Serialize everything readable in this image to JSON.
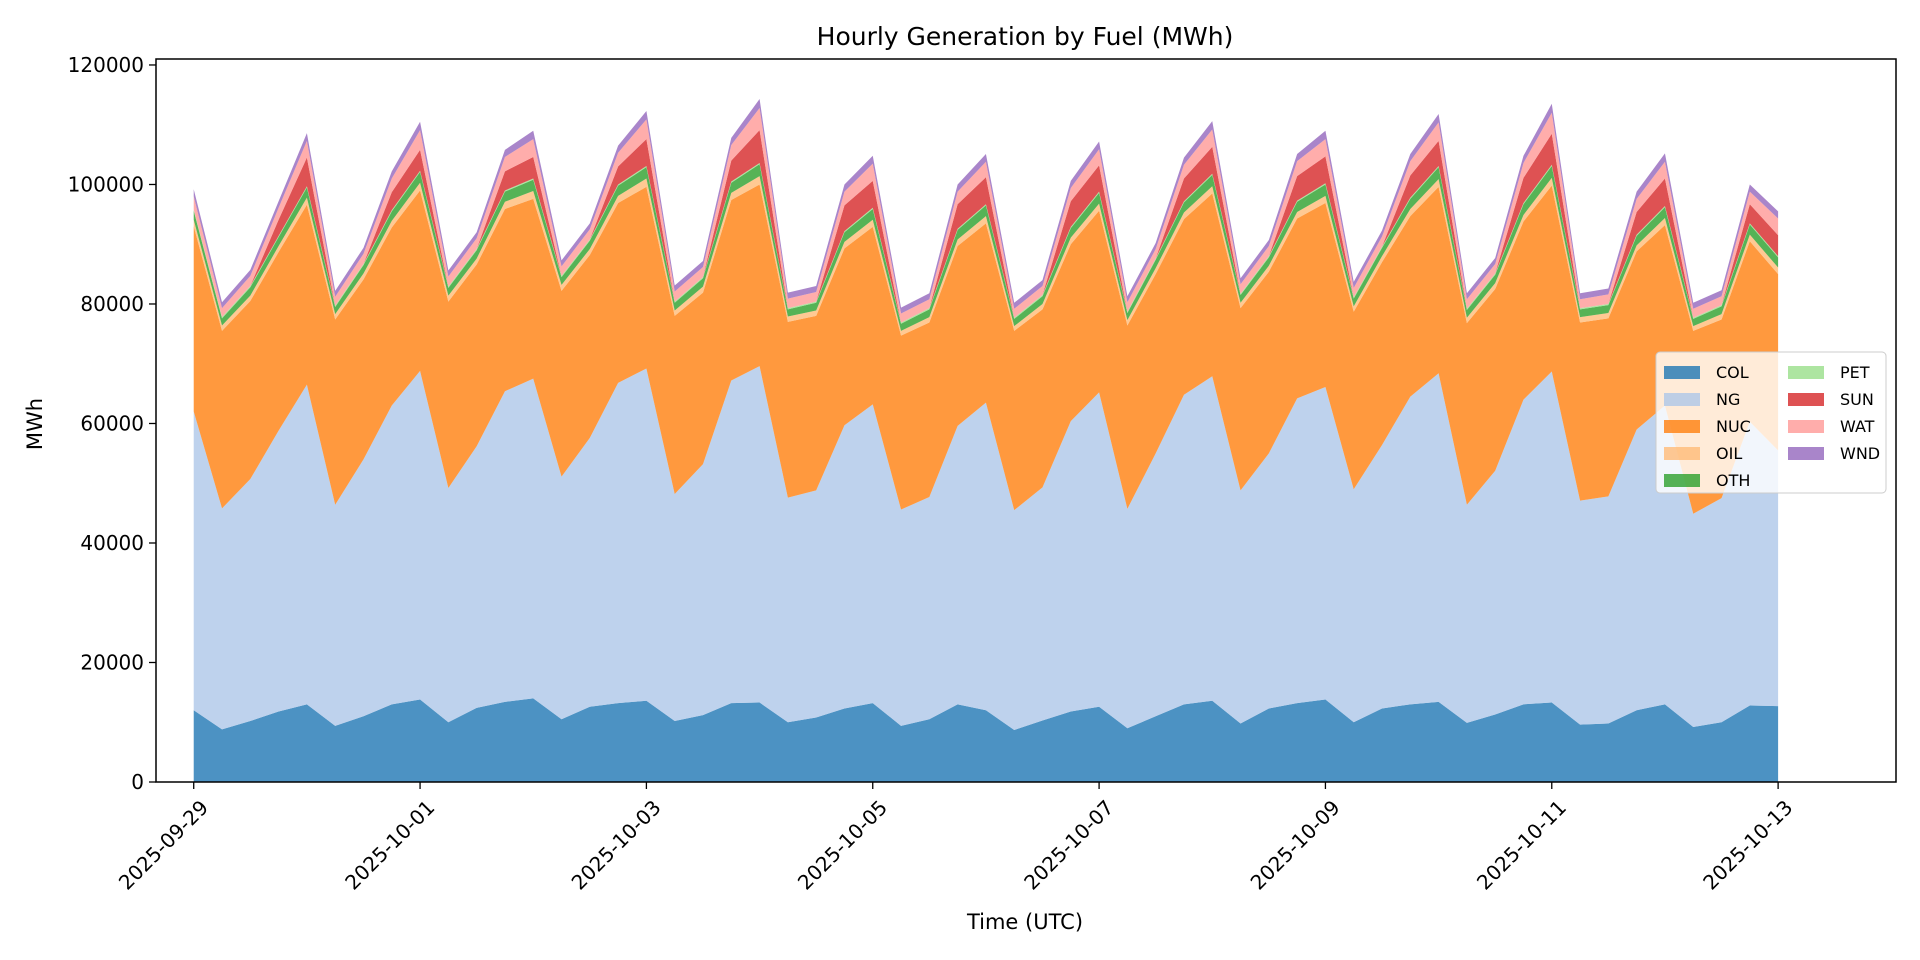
{
  "chart_data": {
    "type": "area",
    "stacked": true,
    "title": "Hourly Generation by Fuel (MWh)",
    "xlabel": "Time (UTC)",
    "ylabel": "MWh",
    "ylim": [
      0,
      121000
    ],
    "xlim": [
      "2025-09-28T16:00",
      "2025-10-14T01:00"
    ],
    "yticks": [
      0,
      20000,
      40000,
      60000,
      80000,
      100000,
      120000
    ],
    "xticks": [
      "2025-09-29",
      "2025-10-01",
      "2025-10-03",
      "2025-10-05",
      "2025-10-07",
      "2025-10-09",
      "2025-10-11",
      "2025-10-13"
    ],
    "grid": false,
    "legend_position": "center-right",
    "legend_columns": 2,
    "x": [
      "2025-09-29T00:00",
      "2025-09-29T06:00",
      "2025-09-29T12:00",
      "2025-09-29T18:00",
      "2025-09-30T00:00",
      "2025-09-30T06:00",
      "2025-09-30T12:00",
      "2025-09-30T18:00",
      "2025-10-01T00:00",
      "2025-10-01T06:00",
      "2025-10-01T12:00",
      "2025-10-01T18:00",
      "2025-10-02T00:00",
      "2025-10-02T06:00",
      "2025-10-02T12:00",
      "2025-10-02T18:00",
      "2025-10-03T00:00",
      "2025-10-03T06:00",
      "2025-10-03T12:00",
      "2025-10-03T18:00",
      "2025-10-04T00:00",
      "2025-10-04T06:00",
      "2025-10-04T12:00",
      "2025-10-04T18:00",
      "2025-10-05T00:00",
      "2025-10-05T06:00",
      "2025-10-05T12:00",
      "2025-10-05T18:00",
      "2025-10-06T00:00",
      "2025-10-06T06:00",
      "2025-10-06T12:00",
      "2025-10-06T18:00",
      "2025-10-07T00:00",
      "2025-10-07T06:00",
      "2025-10-07T12:00",
      "2025-10-07T18:00",
      "2025-10-08T00:00",
      "2025-10-08T06:00",
      "2025-10-08T12:00",
      "2025-10-08T18:00",
      "2025-10-09T00:00",
      "2025-10-09T06:00",
      "2025-10-09T12:00",
      "2025-10-09T18:00",
      "2025-10-10T00:00",
      "2025-10-10T06:00",
      "2025-10-10T12:00",
      "2025-10-10T18:00",
      "2025-10-11T00:00",
      "2025-10-11T06:00",
      "2025-10-11T12:00",
      "2025-10-11T18:00",
      "2025-10-12T00:00",
      "2025-10-12T06:00",
      "2025-10-12T12:00",
      "2025-10-12T18:00",
      "2025-10-13T00:00"
    ],
    "series": [
      {
        "name": "COL",
        "color": "#1f77b4",
        "values": [
          12000,
          8800,
          10200,
          11800,
          13000,
          9400,
          11000,
          13000,
          13800,
          10000,
          12400,
          13400,
          14000,
          10500,
          12600,
          13200,
          13600,
          10200,
          11200,
          13200,
          13300,
          10000,
          10800,
          12300,
          13200,
          9400,
          10500,
          13000,
          12000,
          8700,
          10300,
          11800,
          12600,
          9000,
          11000,
          13000,
          13600,
          9800,
          12300,
          13200,
          13800,
          10000,
          12300,
          13000,
          13400,
          9900,
          11300,
          13000,
          13300,
          9600,
          9800,
          12000,
          13000,
          9200,
          10000,
          12800,
          12700
        ]
      },
      {
        "name": "NG",
        "color": "#aec7e8",
        "values": [
          50000,
          37000,
          40500,
          47000,
          53500,
          37000,
          43000,
          50000,
          55000,
          39200,
          43800,
          52000,
          53500,
          40600,
          45000,
          53600,
          55600,
          38000,
          42000,
          54000,
          56300,
          37600,
          38000,
          47400,
          50000,
          36200,
          37200,
          46600,
          51500,
          36800,
          39000,
          48600,
          52600,
          36700,
          44000,
          51800,
          54300,
          39000,
          42700,
          51000,
          52300,
          39000,
          44100,
          51500,
          55000,
          36500,
          40800,
          51000,
          55400,
          37500,
          38000,
          47000,
          50000,
          35700,
          37500,
          47500,
          42800
        ]
      },
      {
        "name": "NUC",
        "color": "#ff7f0e",
        "values": [
          31000,
          29700,
          29800,
          29900,
          30100,
          31000,
          30100,
          29800,
          30200,
          31200,
          30400,
          30500,
          30100,
          31100,
          30600,
          30100,
          30400,
          29800,
          28700,
          30200,
          30400,
          29400,
          29200,
          29600,
          29700,
          29100,
          29200,
          30100,
          30000,
          30000,
          29800,
          29600,
          30400,
          30700,
          30000,
          29400,
          30600,
          30500,
          30400,
          30100,
          30800,
          29700,
          30600,
          30200,
          31200,
          30400,
          30400,
          29800,
          31100,
          29800,
          29800,
          29800,
          30200,
          30600,
          29900,
          30200,
          29500
        ]
      },
      {
        "name": "OIL",
        "color": "#ffbb78",
        "values": [
          1100,
          900,
          900,
          1000,
          1200,
          900,
          1000,
          1100,
          1300,
          1000,
          1000,
          1200,
          1300,
          1000,
          1000,
          1200,
          1400,
          900,
          1000,
          1200,
          1400,
          900,
          900,
          1100,
          1200,
          800,
          900,
          1100,
          1200,
          800,
          900,
          1100,
          1200,
          900,
          1000,
          1100,
          1200,
          900,
          1000,
          1100,
          1200,
          900,
          1000,
          1200,
          1300,
          900,
          1000,
          1100,
          1300,
          900,
          900,
          1000,
          1200,
          800,
          900,
          1100,
          1100
        ]
      },
      {
        "name": "OTH",
        "color": "#2ca02c",
        "values": [
          1500,
          1200,
          1400,
          1500,
          1700,
          1200,
          1400,
          1600,
          1800,
          1300,
          1400,
          1700,
          1900,
          1300,
          1400,
          1700,
          1900,
          1300,
          1400,
          1700,
          2000,
          1200,
          1300,
          1600,
          1800,
          1200,
          1300,
          1600,
          1800,
          1200,
          1300,
          1600,
          1800,
          1200,
          1400,
          1700,
          1900,
          1300,
          1400,
          1700,
          1900,
          1300,
          1400,
          1700,
          2000,
          1300,
          1400,
          1800,
          2000,
          1300,
          1300,
          1600,
          1800,
          1200,
          1300,
          1700,
          1700
        ]
      },
      {
        "name": "PET",
        "color": "#98df8a",
        "values": [
          200,
          200,
          200,
          200,
          200,
          200,
          200,
          200,
          200,
          200,
          200,
          200,
          200,
          200,
          200,
          200,
          200,
          200,
          200,
          200,
          200,
          200,
          200,
          200,
          200,
          200,
          200,
          200,
          200,
          200,
          200,
          200,
          200,
          200,
          200,
          200,
          200,
          200,
          200,
          200,
          200,
          200,
          200,
          200,
          200,
          200,
          200,
          200,
          200,
          200,
          200,
          200,
          200,
          200,
          200,
          200,
          200
        ]
      },
      {
        "name": "SUN",
        "color": "#d62728",
        "values": [
          0,
          0,
          0,
          2700,
          4800,
          0,
          0,
          3000,
          3500,
          0,
          0,
          3200,
          3600,
          0,
          0,
          3000,
          4500,
          0,
          0,
          3500,
          5500,
          0,
          0,
          4300,
          4500,
          0,
          0,
          4100,
          4500,
          0,
          0,
          4300,
          4400,
          0,
          0,
          3800,
          4500,
          0,
          0,
          4100,
          4500,
          0,
          0,
          3700,
          4200,
          0,
          0,
          4200,
          5200,
          0,
          0,
          3800,
          4600,
          0,
          0,
          3200,
          3500
        ]
      },
      {
        "name": "WAT",
        "color": "#ff9896",
        "values": [
          2200,
          1500,
          1700,
          2000,
          2800,
          1500,
          1700,
          2300,
          3300,
          1700,
          1800,
          2400,
          3000,
          1600,
          1700,
          2300,
          3300,
          1700,
          1700,
          2600,
          3700,
          1600,
          1600,
          2300,
          2900,
          1500,
          1500,
          2100,
          2600,
          1500,
          1500,
          2200,
          2700,
          1600,
          1600,
          2300,
          2900,
          1600,
          1700,
          2500,
          2900,
          1600,
          1700,
          2400,
          3100,
          1600,
          1600,
          2500,
          3500,
          1500,
          1600,
          2200,
          2800,
          1500,
          1500,
          2100,
          2800
        ]
      },
      {
        "name": "WND",
        "color": "#9467bd",
        "values": [
          1200,
          1000,
          1000,
          1100,
          1300,
          1000,
          1000,
          1200,
          1400,
          1000,
          1000,
          1200,
          1400,
          1000,
          1000,
          1200,
          1400,
          1000,
          1000,
          1200,
          1500,
          1000,
          1000,
          1200,
          1300,
          1000,
          1000,
          1200,
          1300,
          1000,
          1000,
          1200,
          1300,
          1000,
          1000,
          1200,
          1400,
          1000,
          1000,
          1200,
          1400,
          1000,
          1000,
          1200,
          1400,
          1000,
          1000,
          1200,
          1500,
          1000,
          1000,
          1200,
          1400,
          1000,
          1000,
          1200,
          1200
        ]
      }
    ]
  }
}
